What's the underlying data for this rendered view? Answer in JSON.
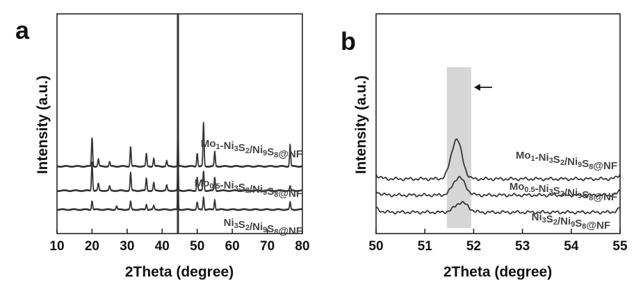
{
  "chart_data": [
    {
      "panel": "a",
      "type": "line",
      "xlabel": "2Theta (degree)",
      "ylabel": "Intensity (a.u.)",
      "xlim": [
        10,
        80
      ],
      "xticks": [
        10,
        20,
        30,
        40,
        50,
        60,
        70,
        80
      ],
      "yticks": [],
      "grid": false,
      "annotations": [
        {
          "type": "vertical-line",
          "x": 44.5
        }
      ],
      "series": [
        {
          "name": "Mo1-Ni3S2/Ni9S8@NF",
          "label_parts": [
            [
              "Mo",
              ""
            ],
            [
              "1",
              "sub"
            ],
            [
              "-Ni",
              ""
            ],
            [
              "3",
              "sub"
            ],
            [
              "S",
              ""
            ],
            [
              "2",
              "sub"
            ],
            [
              "/Ni",
              ""
            ],
            [
              "9",
              "sub"
            ],
            [
              "S",
              ""
            ],
            [
              "8",
              "sub"
            ],
            [
              "@NF",
              ""
            ]
          ],
          "baseline": 3.0,
          "peaks": [
            [
              20.0,
              1.6
            ],
            [
              21.8,
              0.4
            ],
            [
              25.0,
              0.25
            ],
            [
              31.0,
              1.1
            ],
            [
              35.5,
              0.7
            ],
            [
              37.6,
              0.45
            ],
            [
              41.3,
              0.3
            ],
            [
              44.5,
              4.0
            ],
            [
              50.0,
              0.75
            ],
            [
              51.8,
              2.4
            ],
            [
              55.0,
              0.8
            ],
            [
              76.5,
              1.2
            ]
          ]
        },
        {
          "name": "Mo0.5-Ni3S2/Ni9S8@NF",
          "label_parts": [
            [
              "Mo",
              ""
            ],
            [
              "0.5",
              "sub"
            ],
            [
              "-Ni",
              ""
            ],
            [
              "3",
              "sub"
            ],
            [
              "S",
              ""
            ],
            [
              "2",
              "sub"
            ],
            [
              "/Ni",
              ""
            ],
            [
              "9",
              "sub"
            ],
            [
              "S",
              ""
            ],
            [
              "8",
              "sub"
            ],
            [
              "@NF",
              ""
            ]
          ],
          "baseline": 1.65,
          "peaks": [
            [
              20.0,
              1.6
            ],
            [
              21.8,
              0.4
            ],
            [
              25.0,
              0.25
            ],
            [
              31.0,
              1.0
            ],
            [
              35.5,
              0.7
            ],
            [
              37.6,
              0.45
            ],
            [
              41.3,
              0.3
            ],
            [
              44.5,
              4.0
            ],
            [
              50.0,
              0.75
            ],
            [
              51.8,
              1.1
            ],
            [
              55.0,
              0.75
            ],
            [
              76.5,
              0.25
            ]
          ]
        },
        {
          "name": "Ni3S2/Ni9S8@NF",
          "label_parts": [
            [
              "Ni",
              ""
            ],
            [
              "3",
              "sub"
            ],
            [
              "S",
              ""
            ],
            [
              "2",
              "sub"
            ],
            [
              "/Ni",
              ""
            ],
            [
              "9",
              "sub"
            ],
            [
              "S",
              ""
            ],
            [
              "8",
              "sub"
            ],
            [
              "@NF",
              ""
            ]
          ],
          "baseline": 0.6,
          "peaks": [
            [
              20.0,
              0.5
            ],
            [
              27.0,
              0.2
            ],
            [
              31.0,
              0.45
            ],
            [
              35.5,
              0.3
            ],
            [
              37.6,
              0.2
            ],
            [
              44.5,
              4.0
            ],
            [
              50.0,
              0.4
            ],
            [
              51.8,
              0.7
            ],
            [
              55.0,
              0.55
            ],
            [
              76.5,
              0.4
            ]
          ]
        }
      ]
    },
    {
      "panel": "b",
      "type": "line",
      "xlabel": "2Theta (degree)",
      "ylabel": "Intensity (a.u.)",
      "xlim": [
        50,
        55
      ],
      "xticks": [
        50,
        51,
        52,
        53,
        54,
        55
      ],
      "yticks": [],
      "grid": false,
      "annotations": [
        {
          "type": "shaded-band",
          "x": [
            51.45,
            51.95
          ]
        },
        {
          "type": "arrow",
          "direction": "left",
          "x": 51.95
        }
      ],
      "series": [
        {
          "name": "Mo1-Ni3S2/Ni9S8@NF",
          "label_parts": [
            [
              "Mo",
              ""
            ],
            [
              "1",
              "sub"
            ],
            [
              "-Ni",
              ""
            ],
            [
              "3",
              "sub"
            ],
            [
              "S",
              ""
            ],
            [
              "2",
              "sub"
            ],
            [
              "/Ni",
              ""
            ],
            [
              "9",
              "sub"
            ],
            [
              "S",
              ""
            ],
            [
              "8",
              "sub"
            ],
            [
              "@NF",
              ""
            ]
          ],
          "baseline": 2.3,
          "peak": {
            "x": 51.65,
            "height": 2.2,
            "width": 0.11
          }
        },
        {
          "name": "Mo0.5-Ni3S2/Ni9S8@NF",
          "label_parts": [
            [
              "Mo",
              ""
            ],
            [
              "0.5",
              "sub"
            ],
            [
              "-Ni",
              ""
            ],
            [
              "3",
              "sub"
            ],
            [
              "S",
              ""
            ],
            [
              "2",
              "sub"
            ],
            [
              "/Ni",
              ""
            ],
            [
              "9",
              "sub"
            ],
            [
              "S",
              ""
            ],
            [
              "8",
              "sub"
            ],
            [
              "@NF",
              ""
            ]
          ],
          "baseline": 1.4,
          "peak": {
            "x": 51.7,
            "height": 1.0,
            "width": 0.12
          }
        },
        {
          "name": "Ni3S2/Ni9S8@NF",
          "label_parts": [
            [
              "Ni",
              ""
            ],
            [
              "3",
              "sub"
            ],
            [
              "S",
              ""
            ],
            [
              "2",
              "sub"
            ],
            [
              "/Ni",
              ""
            ],
            [
              "9",
              "sub"
            ],
            [
              "S",
              ""
            ],
            [
              "8",
              "sub"
            ],
            [
              "@NF",
              ""
            ]
          ],
          "baseline": 0.45,
          "peak": {
            "x": 51.75,
            "height": 0.55,
            "width": 0.13
          }
        }
      ]
    }
  ]
}
